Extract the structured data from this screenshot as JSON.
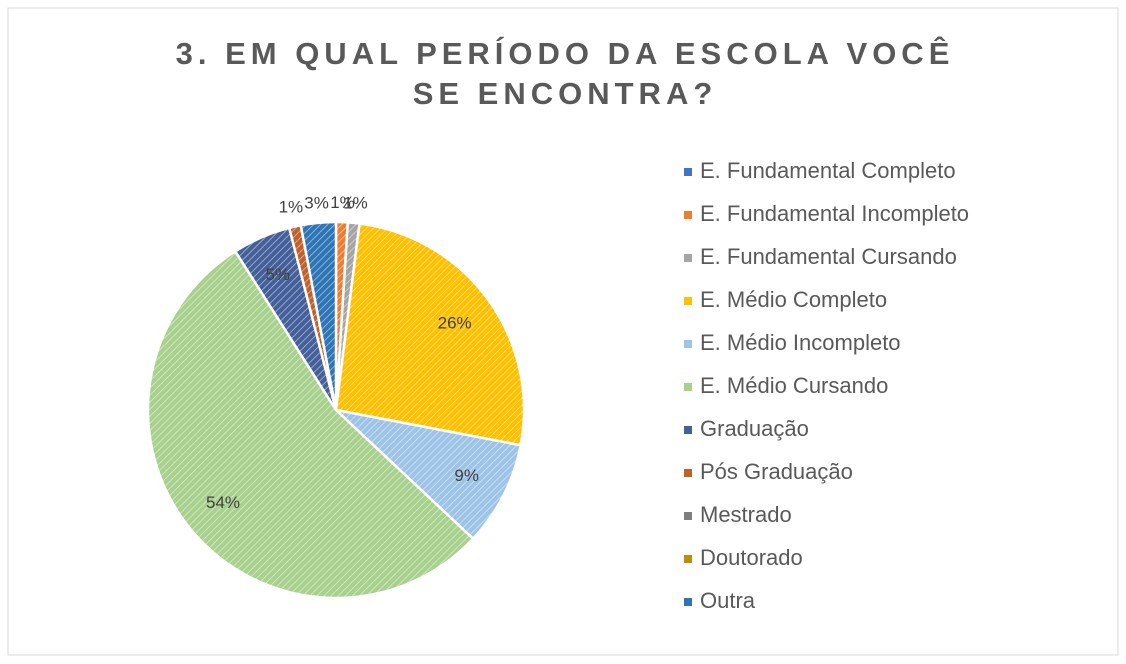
{
  "chart_data": {
    "type": "pie",
    "title": "3. EM QUAL PERÍODO DA ESCOLA VOCÊ SE ENCONTRA?",
    "categories": [
      "E. Fundamental Completo",
      "E. Fundamental Incompleto",
      "E. Fundamental Cursando",
      "E. Médio Completo",
      "E. Médio Incompleto",
      "E. Médio Cursando",
      "Graduação",
      "Pós Graduação",
      "Mestrado",
      "Doutorado",
      "Outra"
    ],
    "values": [
      0,
      1,
      1,
      26,
      9,
      54,
      5,
      1,
      0,
      0,
      3
    ],
    "value_labels": [
      null,
      "1%",
      "1%",
      "26%",
      "9%",
      "54%",
      "5%",
      "1%",
      null,
      null,
      "3%"
    ],
    "colors": [
      "#4472c4",
      "#ed7d31",
      "#a5a5a5",
      "#ffc000",
      "#9dc3e6",
      "#a9d18e",
      "#44609a",
      "#c0602a",
      "#7f7f7f",
      "#b8900a",
      "#2e75b6"
    ],
    "legend": "right"
  }
}
